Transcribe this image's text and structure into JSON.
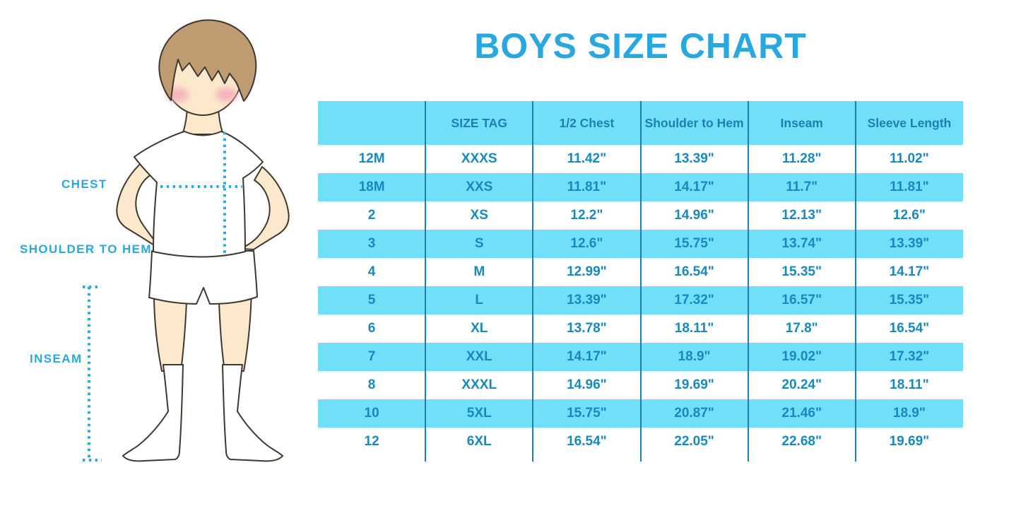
{
  "title": "BOYS SIZE CHART",
  "figure": {
    "labels": {
      "chest": "CHEST",
      "shoulder_to_hem": "SHOULDER TO HEM",
      "inseam": "INSEAM"
    }
  },
  "chart_data": {
    "type": "table",
    "title": "BOYS SIZE CHART",
    "columns": [
      "",
      "SIZE TAG",
      "1/2 Chest",
      "Shoulder to Hem",
      "Inseam",
      "Sleeve Length"
    ],
    "rows": [
      [
        "12M",
        "XXXS",
        "11.42\"",
        "13.39\"",
        "11.28\"",
        "11.02\""
      ],
      [
        "18M",
        "XXS",
        "11.81\"",
        "14.17\"",
        "11.7\"",
        "11.81\""
      ],
      [
        "2",
        "XS",
        "12.2\"",
        "14.96\"",
        "12.13\"",
        "12.6\""
      ],
      [
        "3",
        "S",
        "12.6\"",
        "15.75\"",
        "13.74\"",
        "13.39\""
      ],
      [
        "4",
        "M",
        "12.99\"",
        "16.54\"",
        "15.35\"",
        "14.17\""
      ],
      [
        "5",
        "L",
        "13.39\"",
        "17.32\"",
        "16.57\"",
        "15.35\""
      ],
      [
        "6",
        "XL",
        "13.78\"",
        "18.11\"",
        "17.8\"",
        "16.54\""
      ],
      [
        "7",
        "XXL",
        "14.17\"",
        "18.9\"",
        "19.02\"",
        "17.32\""
      ],
      [
        "8",
        "XXXL",
        "14.96\"",
        "19.69\"",
        "20.24\"",
        "18.11\""
      ],
      [
        "10",
        "5XL",
        "15.75\"",
        "20.87\"",
        "21.46\"",
        "18.9\""
      ],
      [
        "12",
        "6XL",
        "16.54\"",
        "22.05\"",
        "22.68\"",
        "19.69\""
      ]
    ],
    "layout": {
      "alternating_row_fill": "every second data row cyan, starting with row 2 (18M)",
      "grid": "vertical column dividers only, no horizontal borders, no outer border"
    }
  },
  "colors": {
    "accent_blue": "#29A8E0",
    "dots_blue": "#29ABE2",
    "row_cyan": "#72DFF8",
    "divider_blue": "#1C7FB0",
    "header_text": "#1E7FB2",
    "cell_text": "#1789C1",
    "skin": "#FCE9CC",
    "hair": "#BE9B70",
    "outline": "#3F3831",
    "blush": "#F2A7B7",
    "garment": "#FFFFFF",
    "background": "#FFFFFF"
  }
}
